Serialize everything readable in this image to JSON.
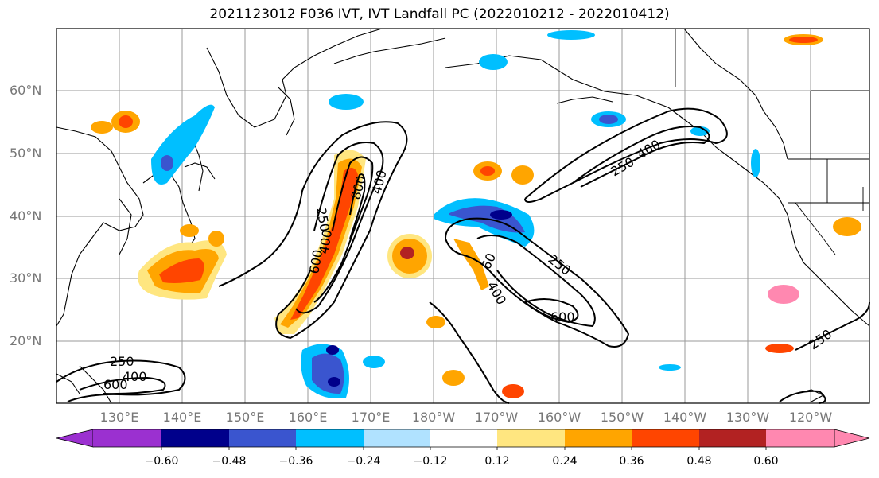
{
  "title": "2021123012 F036 IVT, IVT Landfall PC (2022010212 - 2022010412)",
  "lat_labels": [
    "60°N",
    "50°N",
    "40°N",
    "30°N",
    "20°N"
  ],
  "lon_labels": [
    "130°E",
    "140°E",
    "150°E",
    "160°E",
    "170°E",
    "180°W",
    "170°W",
    "160°W",
    "150°W",
    "140°W",
    "130°W",
    "120°W"
  ],
  "contour_labels": [
    "250",
    "400",
    "800",
    "400",
    "600",
    "250",
    "400",
    "60",
    "250",
    "400",
    "600",
    "250",
    "400",
    "600",
    "250",
    "400",
    "250"
  ],
  "colorbar": {
    "colors": [
      "#9b30d0",
      "#00008b",
      "#3a55cf",
      "#00bfff",
      "#b0e2ff",
      "#ffffff",
      "#ffffff",
      "#ffe680",
      "#ffa500",
      "#ff4500",
      "#b22222",
      "#ff88b0"
    ],
    "ticks": [
      "−0.60",
      "−0.48",
      "−0.36",
      "−0.24",
      "−0.12",
      "0.12",
      "0.24",
      "0.36",
      "0.48",
      "0.60"
    ]
  }
}
